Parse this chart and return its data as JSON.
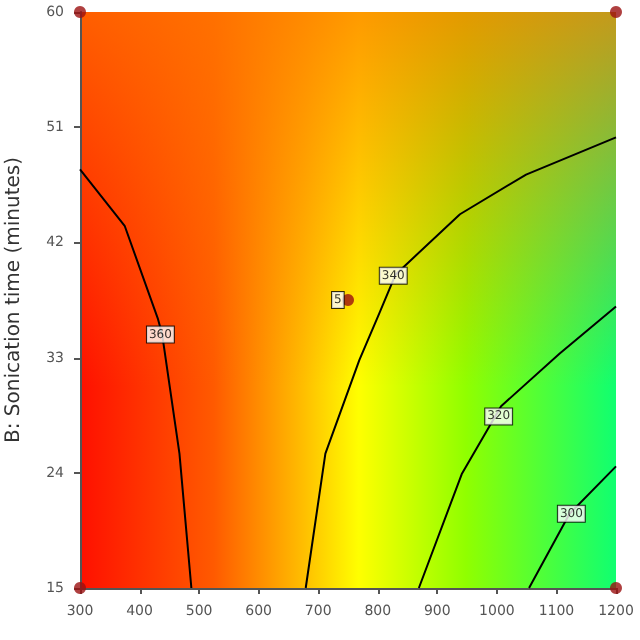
{
  "chart_data": {
    "type": "line",
    "ylabel": "B: Sonication time (minutes)",
    "xlim": [
      300,
      1200
    ],
    "xticks": [
      300,
      400,
      500,
      600,
      700,
      800,
      900,
      1000,
      1100,
      1200
    ],
    "ylim": [
      15,
      60
    ],
    "yticks": [
      15,
      24,
      33,
      42,
      51,
      60
    ],
    "marker": "none",
    "line_style": "solid",
    "series": [
      {
        "color": "#000000",
        "x": [
          300,
          375,
          431,
          438,
          467,
          487
        ],
        "values": [
          47.7,
          43.3,
          36,
          34.8,
          25.5,
          15
        ]
      },
      {
        "color": "#000000",
        "x": [
          679,
          712,
          769,
          802,
          830,
          938,
          1049,
          1200
        ],
        "values": [
          15,
          25.5,
          32.8,
          36.4,
          39.5,
          44.2,
          47.3,
          50.2
        ]
      },
      {
        "color": "#000000",
        "x": [
          869,
          941,
          1007,
          1105,
          1200
        ],
        "values": [
          15,
          23.9,
          29.2,
          33.3,
          37
        ]
      },
      {
        "color": "#000000",
        "x": [
          1054,
          1122,
          1200
        ],
        "values": [
          15,
          20.8,
          24.5
        ]
      },
      {
        "type": "scatter",
        "marker": "circle",
        "color": "#9b1010",
        "x": [
          300,
          1200,
          300,
          1200,
          750
        ],
        "values": [
          60,
          60,
          15,
          15,
          37.5
        ]
      }
    ],
    "annotations": [
      {
        "text": "360",
        "x": 435,
        "y": 34.8
      },
      {
        "text": "340",
        "x": 826,
        "y": 39.4
      },
      {
        "text": "320",
        "x": 1003,
        "y": 28.4
      },
      {
        "text": "300",
        "x": 1125,
        "y": 20.8
      },
      {
        "text": "5",
        "x": 733,
        "y": 37.5
      }
    ]
  }
}
